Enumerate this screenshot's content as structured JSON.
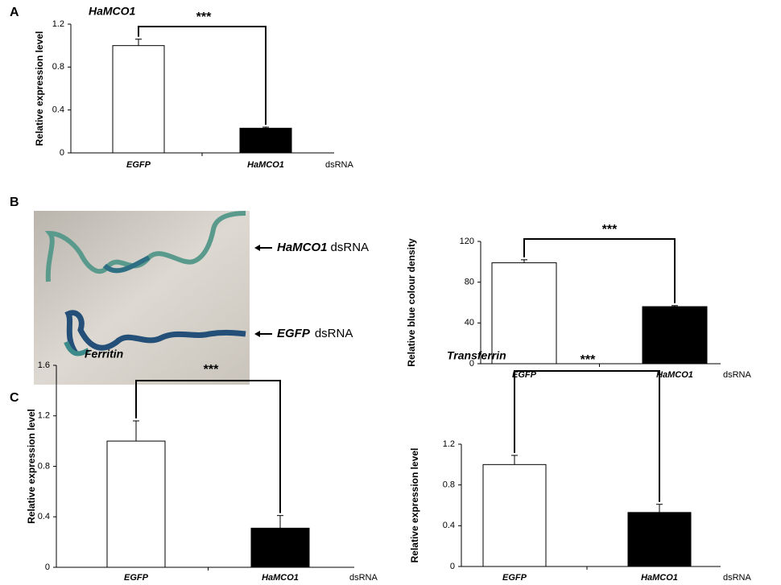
{
  "panel_labels": [
    "A",
    "B",
    "C"
  ],
  "photo_labels": [
    {
      "gene": "HaMCO1",
      "suffix": "dsRNA"
    },
    {
      "gene": "EGFP",
      "suffix": "dsRNA"
    }
  ],
  "chart_data": [
    {
      "type": "bar",
      "title": "HaMCO1",
      "y_label": "Relative expression level",
      "x_label": "dsRNA",
      "categories": [
        "EGFP",
        "HaMCO1"
      ],
      "values": [
        1.0,
        0.23
      ],
      "errors": [
        0.06,
        0.01
      ],
      "colors": [
        "#ffffff",
        "#000000"
      ],
      "ylim": [
        0,
        1.2
      ],
      "yticks": [
        0,
        0.4,
        0.8,
        1.2
      ],
      "significance": "***"
    },
    {
      "type": "bar",
      "y_label": "Relative blue colour density",
      "x_label": "dsRNA",
      "categories": [
        "EGFP",
        "HaMCO1"
      ],
      "values": [
        99,
        56
      ],
      "errors": [
        3,
        1
      ],
      "colors": [
        "#ffffff",
        "#000000"
      ],
      "ylim": [
        0,
        120
      ],
      "yticks": [
        0,
        40,
        80,
        120
      ],
      "significance": "***"
    },
    {
      "type": "bar",
      "title": "Ferritin",
      "y_label": "Relative expression level",
      "x_label": "dsRNA",
      "categories": [
        "EGFP",
        "HaMCO1"
      ],
      "values": [
        1.0,
        0.31
      ],
      "errors": [
        0.16,
        0.1
      ],
      "colors": [
        "#ffffff",
        "#000000"
      ],
      "ylim": [
        0,
        1.6
      ],
      "yticks": [
        0,
        0.4,
        0.8,
        1.2,
        1.6
      ],
      "significance": "***"
    },
    {
      "type": "bar",
      "title": "Transferrin",
      "y_label": "Relative expression level",
      "x_label": "dsRNA",
      "categories": [
        "EGFP",
        "HaMCO1"
      ],
      "values": [
        1.0,
        0.53
      ],
      "errors": [
        0.09,
        0.08
      ],
      "colors": [
        "#ffffff",
        "#000000"
      ],
      "ylim": [
        0,
        1.2
      ],
      "yticks": [
        0,
        0.4,
        0.8,
        1.2
      ],
      "significance": "***"
    }
  ]
}
